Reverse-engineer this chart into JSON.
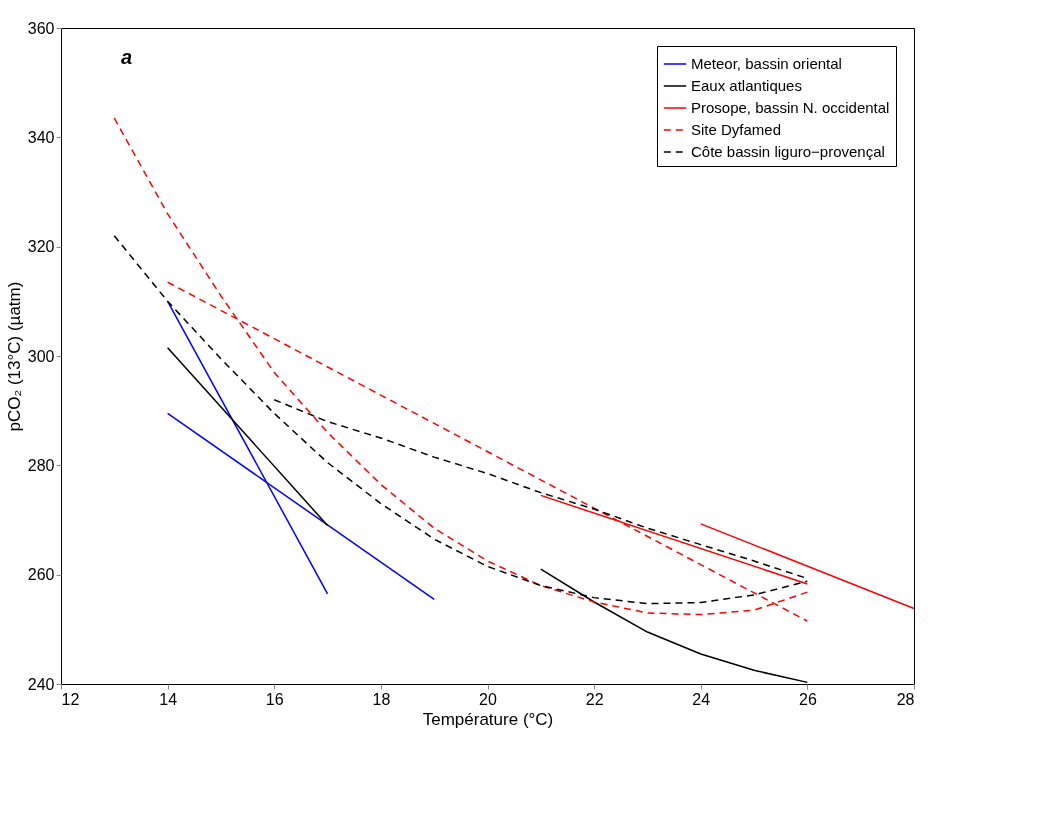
{
  "chart_data": {
    "type": "line",
    "xlabel": "Température (°C)",
    "ylabel": "pCO₂ (13°C) (µatm)",
    "xlim": [
      12,
      28
    ],
    "ylim": [
      240,
      360
    ],
    "xticks": [
      12,
      14,
      16,
      18,
      20,
      22,
      24,
      26,
      28
    ],
    "yticks": [
      240,
      260,
      280,
      300,
      320,
      340,
      360
    ],
    "grid": false,
    "legend": "top right",
    "marker": "none",
    "annotations": [
      "a"
    ],
    "series": [
      {
        "name": "Meteor, bassin oriental",
        "color": "#0000ff",
        "line_style": "solid",
        "x": [
          14,
          17,
          null,
          14,
          19
        ],
        "values": [
          310,
          256.5,
          null,
          289.5,
          255.5
        ]
      },
      {
        "name": "Eaux atlantiques",
        "color": "#000000",
        "line_style": "solid",
        "x": [
          14,
          17,
          null,
          21,
          22,
          23,
          24,
          25,
          26
        ],
        "values": [
          301.5,
          269,
          null,
          261,
          255,
          249.5,
          245.5,
          242.5,
          240.3
        ]
      },
      {
        "name": "Prosope, bassin N. occidental",
        "color": "#ff0000",
        "line_style": "solid",
        "x": [
          21,
          26,
          null,
          24,
          28
        ],
        "values": [
          274.5,
          258.3,
          null,
          269.3,
          253.8
        ]
      },
      {
        "name": "Site Dyfamed",
        "color": "#ff0000",
        "line_style": "dashed",
        "x": [
          13,
          14,
          15,
          16,
          17,
          18,
          19,
          20,
          21,
          22,
          23,
          24,
          25,
          26,
          null,
          14,
          26
        ],
        "values": [
          343.5,
          326,
          311,
          297,
          286,
          276.5,
          268.5,
          262.5,
          258,
          255,
          253,
          252.7,
          253.5,
          256.8,
          null,
          313.5,
          251.5
        ]
      },
      {
        "name": "Côte bassin liguro−provençal",
        "color": "#000000",
        "line_style": "dashed",
        "x": [
          13,
          14,
          15,
          16,
          17,
          18,
          19,
          20,
          21,
          22,
          23,
          24,
          25,
          26,
          null,
          16,
          17,
          18,
          19,
          20,
          21,
          22,
          23,
          24,
          25,
          26
        ],
        "values": [
          322,
          310,
          299.5,
          289.5,
          280.5,
          273,
          266.5,
          261.5,
          258,
          255.8,
          254.7,
          254.9,
          256.3,
          258.8,
          null,
          292,
          288,
          285,
          281.5,
          278.5,
          275,
          272,
          268.5,
          265.5,
          262.5,
          259.3
        ]
      }
    ]
  }
}
